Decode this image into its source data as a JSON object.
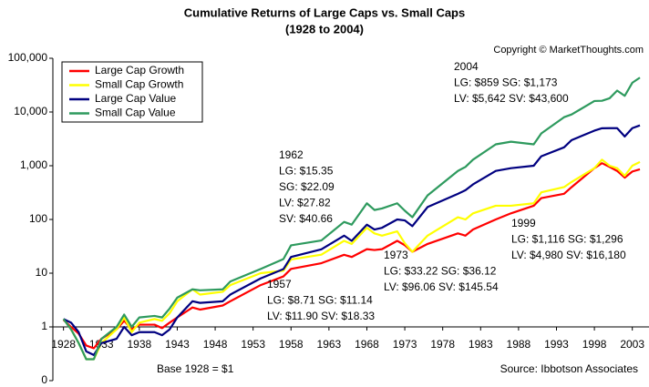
{
  "chart_data": {
    "type": "line",
    "title": "Cumulative Returns of Large Caps vs. Small Caps",
    "subtitle": "(1928 to 2004)",
    "copyright": "Copyright © MarketThoughts.com",
    "note": "Base 1928 = $1",
    "source": "Source: Ibbotson Associates",
    "yscale": "log",
    "grid": false,
    "legend": "upper left",
    "xaxis_at": 1,
    "xlim": [
      1926.6,
      2005.2
    ],
    "xticks": [
      1928,
      1933,
      1938,
      1943,
      1948,
      1953,
      1958,
      1963,
      1968,
      1973,
      1978,
      1983,
      1988,
      1993,
      1998,
      2003
    ],
    "ylim": [
      0.1,
      100000
    ],
    "yticks": [
      {
        "value": 0.1,
        "label": "0"
      },
      1,
      10,
      100,
      {
        "value": 1000,
        "label": "1,000"
      },
      {
        "value": 10000,
        "label": "10,000"
      },
      {
        "value": 100000,
        "label": "100,000"
      }
    ],
    "x": [
      1928,
      1929,
      1930,
      1931,
      1932,
      1933,
      1935,
      1936,
      1937,
      1938,
      1940,
      1941,
      1942,
      1943,
      1945,
      1946,
      1949,
      1950,
      1954,
      1957,
      1958,
      1962,
      1965,
      1966,
      1968,
      1969,
      1970,
      1972,
      1973,
      1974,
      1976,
      1980,
      1981,
      1982,
      1985,
      1987,
      1990,
      1991,
      1994,
      1995,
      1998,
      1999,
      2000,
      2001,
      2002,
      2003,
      2004
    ],
    "series": [
      {
        "name": "Large Cap Growth",
        "color": "#ff0000",
        "values": [
          1.35,
          1.0,
          0.75,
          0.45,
          0.4,
          0.6,
          0.9,
          1.3,
          0.9,
          1.1,
          1.1,
          0.95,
          1.2,
          1.5,
          2.3,
          2.1,
          2.5,
          3.0,
          6,
          8.71,
          12,
          15.35,
          22,
          20,
          28,
          27,
          28,
          40,
          33.22,
          25,
          35,
          55,
          50,
          65,
          100,
          130,
          180,
          250,
          300,
          400,
          900,
          1116,
          950,
          800,
          600,
          780,
          859
        ]
      },
      {
        "name": "Small Cap Growth",
        "color": "#ffff00",
        "values": [
          1.4,
          0.9,
          0.5,
          0.25,
          0.25,
          0.5,
          0.9,
          1.5,
          0.8,
          1.2,
          1.4,
          1.3,
          1.8,
          3.0,
          5,
          4,
          4.5,
          6,
          10,
          11.14,
          18,
          22.09,
          40,
          35,
          70,
          55,
          50,
          60,
          36.12,
          25,
          50,
          110,
          100,
          130,
          180,
          180,
          200,
          320,
          400,
          500,
          900,
          1296,
          1000,
          900,
          650,
          1000,
          1173
        ]
      },
      {
        "name": "Large Cap Value",
        "color": "#000080",
        "values": [
          1.4,
          1.2,
          0.8,
          0.35,
          0.3,
          0.5,
          0.6,
          1.0,
          0.7,
          0.8,
          0.8,
          0.7,
          0.9,
          1.5,
          3,
          2.8,
          3,
          4,
          8,
          11.9,
          20,
          27.82,
          50,
          40,
          80,
          65,
          70,
          100,
          96.06,
          75,
          170,
          300,
          350,
          450,
          800,
          900,
          1000,
          1500,
          2200,
          3000,
          4500,
          4980,
          5000,
          5000,
          3500,
          5000,
          5642
        ]
      },
      {
        "name": "Small Cap Value",
        "color": "#2e9a5e",
        "values": [
          1.4,
          0.9,
          0.5,
          0.25,
          0.25,
          0.6,
          1.0,
          1.7,
          1.0,
          1.5,
          1.6,
          1.5,
          2.2,
          3.5,
          5,
          4.8,
          5,
          7,
          12,
          18.33,
          33,
          40.66,
          90,
          80,
          200,
          150,
          160,
          200,
          145.54,
          110,
          280,
          800,
          950,
          1300,
          2500,
          2800,
          2500,
          4000,
          8000,
          9000,
          16000,
          16180,
          18000,
          25000,
          20000,
          35000,
          43600
        ]
      }
    ],
    "annotations": [
      {
        "lines": [
          "2004",
          "LG: $859 SG: $1,173",
          "LV: $5,642 SV: $43,600"
        ]
      },
      {
        "lines": [
          "1962",
          "LG: $15.35",
          "SG: $22.09",
          "LV: $27.82",
          "SV: $40.66"
        ]
      },
      {
        "lines": [
          "1957",
          "LG: $8.71 SG: $11.14",
          "LV: $11.90 SV: $18.33"
        ]
      },
      {
        "lines": [
          "1973",
          "LG: $33.22 SG: $36.12",
          "LV: $96.06 SV: $145.54"
        ]
      },
      {
        "lines": [
          "1999",
          "LG: $1,116 SG: $1,296",
          "LV: $4,980 SV: $16,180"
        ]
      }
    ]
  }
}
